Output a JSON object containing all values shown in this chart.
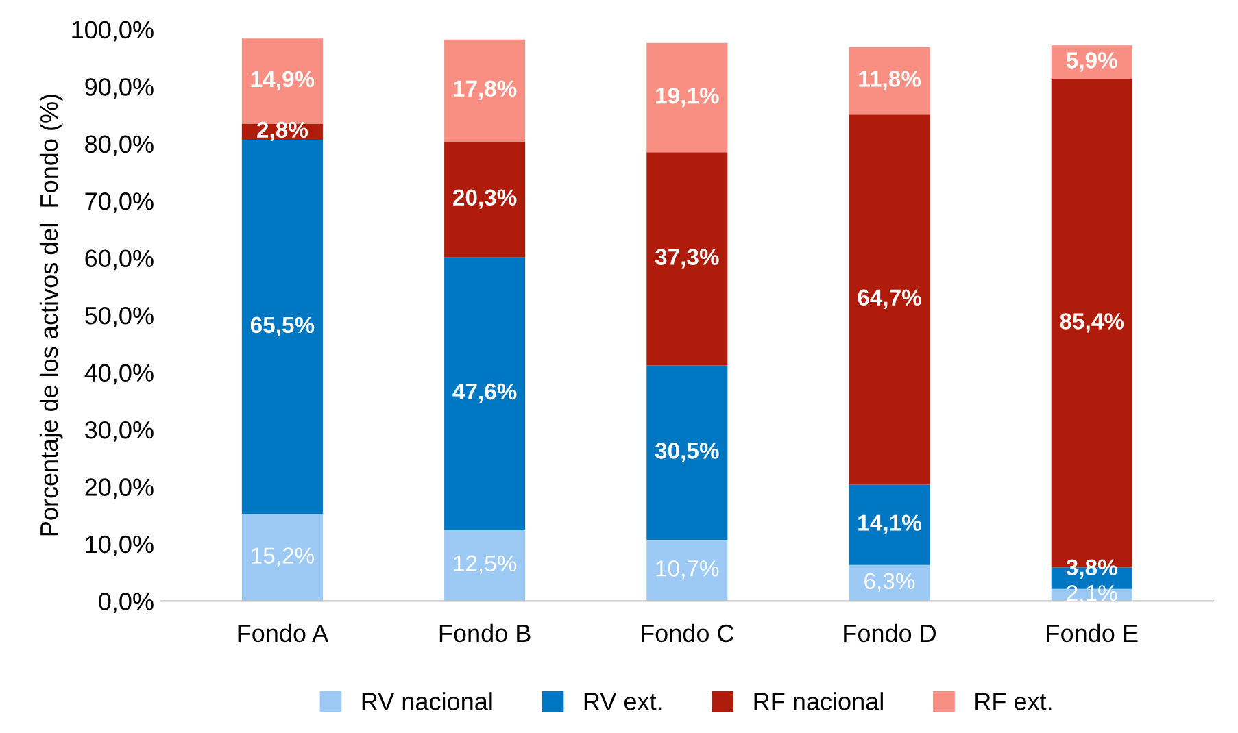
{
  "chart_data": {
    "type": "bar",
    "stacked": true,
    "ylabel": "Porcentaje de los activos del  Fondo (%)",
    "categories": [
      "Fondo A",
      "Fondo B",
      "Fondo C",
      "Fondo D",
      "Fondo E"
    ],
    "series": [
      {
        "name": "RV nacional",
        "color": "#9dc9f5",
        "values": [
          15.2,
          12.5,
          10.7,
          6.3,
          2.1
        ],
        "value_labels": [
          "15,2%",
          "12,5%",
          "10,7%",
          "6,3%",
          "2,1%"
        ]
      },
      {
        "name": "RV ext.",
        "color": "#0077c2",
        "values": [
          65.5,
          47.6,
          30.5,
          14.1,
          3.8
        ],
        "value_labels": [
          "65,5%",
          "47,6%",
          "30,5%",
          "14,1%",
          "3,8%"
        ]
      },
      {
        "name": "RF nacional",
        "color": "#b01c0b",
        "values": [
          2.8,
          20.3,
          37.3,
          64.7,
          85.4
        ],
        "value_labels": [
          "2,8%",
          "20,3%",
          "37,3%",
          "64,7%",
          "85,4%"
        ]
      },
      {
        "name": "RF ext.",
        "color": "#f98f82",
        "values": [
          14.9,
          17.8,
          19.1,
          11.8,
          5.9
        ],
        "value_labels": [
          "14,9%",
          "17,8%",
          "19,1%",
          "11,8%",
          "5,9%"
        ]
      }
    ],
    "ylim": [
      0,
      100
    ],
    "yticks": [
      {
        "value": 0,
        "label": "0,0%"
      },
      {
        "value": 10,
        "label": "10,0%"
      },
      {
        "value": 20,
        "label": "20,0%"
      },
      {
        "value": 30,
        "label": "30,0%"
      },
      {
        "value": 40,
        "label": "40,0%"
      },
      {
        "value": 50,
        "label": "50,0%"
      },
      {
        "value": 60,
        "label": "60,0%"
      },
      {
        "value": 70,
        "label": "70,0%"
      },
      {
        "value": 80,
        "label": "80,0%"
      },
      {
        "value": 90,
        "label": "90,0%"
      },
      {
        "value": 100,
        "label": "100,0%"
      }
    ],
    "legend": "bottom"
  }
}
